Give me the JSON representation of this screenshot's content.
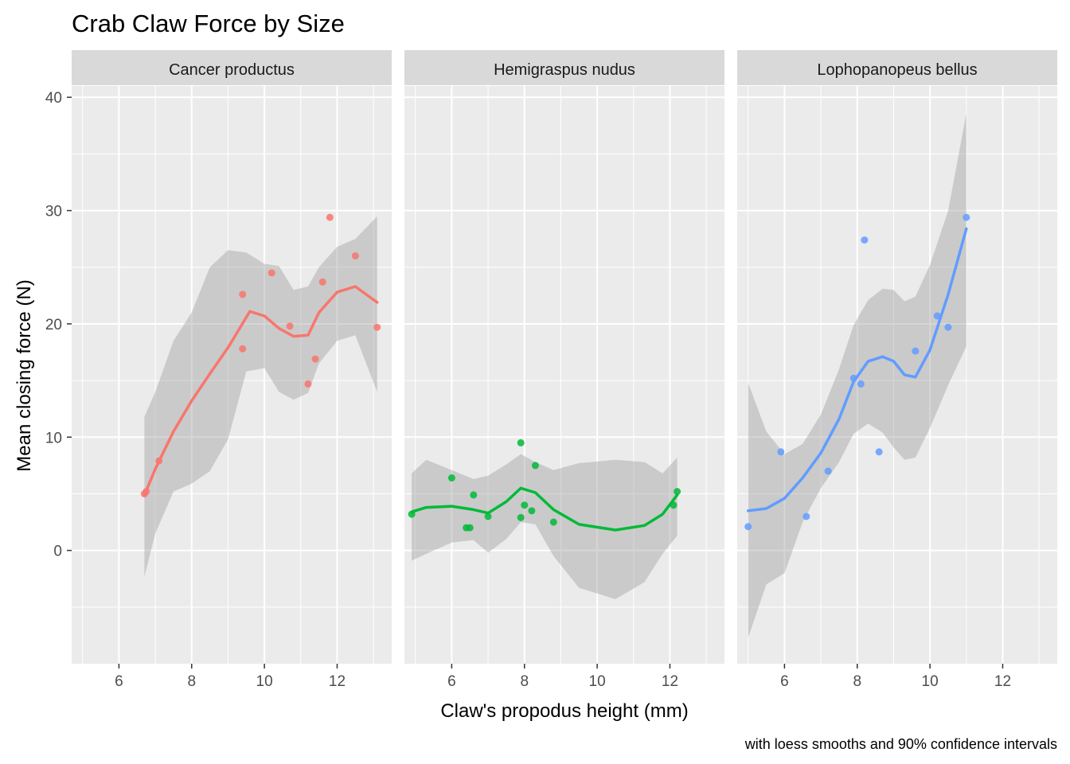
{
  "chart_data": {
    "type": "scatter",
    "title": "Crab Claw Force by Size",
    "xlabel": "Claw's propodus height (mm)",
    "ylabel": "Mean closing force (N)",
    "caption": "with loess smooths and 90% confidence intervals",
    "xlim": [
      4.7,
      13.5
    ],
    "ylim": [
      -10,
      41
    ],
    "x_ticks": [
      6,
      8,
      10,
      12
    ],
    "y_ticks": [
      0,
      10,
      20,
      30,
      40
    ],
    "grid": true,
    "legend": "none",
    "facets": [
      {
        "name": "Cancer productus",
        "color": "#F8766D",
        "points": [
          [
            6.7,
            5.0
          ],
          [
            6.75,
            5.2
          ],
          [
            7.1,
            7.9
          ],
          [
            9.4,
            22.6
          ],
          [
            9.4,
            17.8
          ],
          [
            10.2,
            24.5
          ],
          [
            10.7,
            19.8
          ],
          [
            11.2,
            14.7
          ],
          [
            11.4,
            16.9
          ],
          [
            11.6,
            23.7
          ],
          [
            11.8,
            29.4
          ],
          [
            12.5,
            26.0
          ],
          [
            13.1,
            19.7
          ]
        ],
        "smooth": [
          [
            6.7,
            4.9
          ],
          [
            7.0,
            7.2
          ],
          [
            7.5,
            10.5
          ],
          [
            8.0,
            13.2
          ],
          [
            8.5,
            15.6
          ],
          [
            9.0,
            17.9
          ],
          [
            9.3,
            19.5
          ],
          [
            9.6,
            21.1
          ],
          [
            10.0,
            20.7
          ],
          [
            10.4,
            19.6
          ],
          [
            10.8,
            18.9
          ],
          [
            11.2,
            19.0
          ],
          [
            11.5,
            21.0
          ],
          [
            12.0,
            22.8
          ],
          [
            12.5,
            23.3
          ],
          [
            13.1,
            21.9
          ]
        ],
        "band_upper": [
          [
            6.7,
            11.8
          ],
          [
            7.0,
            14.0
          ],
          [
            7.5,
            18.5
          ],
          [
            8.0,
            21.0
          ],
          [
            8.5,
            25.0
          ],
          [
            9.0,
            26.5
          ],
          [
            9.5,
            26.3
          ],
          [
            10.0,
            25.3
          ],
          [
            10.4,
            25.1
          ],
          [
            10.8,
            23.0
          ],
          [
            11.2,
            23.3
          ],
          [
            11.5,
            25.0
          ],
          [
            12.0,
            26.8
          ],
          [
            12.5,
            27.5
          ],
          [
            13.1,
            29.5
          ]
        ],
        "band_lower": [
          [
            6.7,
            -2.3
          ],
          [
            7.0,
            1.5
          ],
          [
            7.5,
            5.2
          ],
          [
            8.0,
            5.9
          ],
          [
            8.5,
            7.0
          ],
          [
            9.0,
            9.8
          ],
          [
            9.5,
            15.8
          ],
          [
            10.0,
            16.1
          ],
          [
            10.4,
            14.0
          ],
          [
            10.8,
            13.3
          ],
          [
            11.2,
            13.9
          ],
          [
            11.5,
            16.5
          ],
          [
            12.0,
            18.5
          ],
          [
            12.5,
            19.0
          ],
          [
            13.1,
            14.0
          ]
        ]
      },
      {
        "name": "Hemigraspus nudus",
        "color": "#00BA38",
        "points": [
          [
            4.9,
            3.2
          ],
          [
            6.0,
            6.4
          ],
          [
            6.4,
            2.0
          ],
          [
            6.5,
            2.0
          ],
          [
            6.6,
            4.9
          ],
          [
            7.0,
            3.0
          ],
          [
            7.9,
            9.5
          ],
          [
            7.9,
            2.9
          ],
          [
            8.0,
            4.0
          ],
          [
            8.2,
            3.5
          ],
          [
            8.3,
            7.5
          ],
          [
            8.8,
            2.5
          ],
          [
            12.1,
            4.0
          ],
          [
            12.2,
            5.2
          ]
        ],
        "smooth": [
          [
            4.9,
            3.4
          ],
          [
            5.3,
            3.8
          ],
          [
            6.0,
            3.9
          ],
          [
            6.6,
            3.6
          ],
          [
            7.0,
            3.3
          ],
          [
            7.5,
            4.3
          ],
          [
            7.9,
            5.5
          ],
          [
            8.3,
            5.1
          ],
          [
            8.8,
            3.6
          ],
          [
            9.5,
            2.3
          ],
          [
            10.5,
            1.8
          ],
          [
            11.3,
            2.2
          ],
          [
            11.8,
            3.2
          ],
          [
            12.2,
            4.9
          ]
        ],
        "band_upper": [
          [
            4.9,
            6.8
          ],
          [
            5.3,
            8.0
          ],
          [
            6.0,
            7.1
          ],
          [
            6.6,
            6.3
          ],
          [
            7.0,
            6.6
          ],
          [
            7.5,
            7.6
          ],
          [
            7.9,
            8.5
          ],
          [
            8.3,
            7.8
          ],
          [
            8.8,
            7.1
          ],
          [
            9.5,
            7.7
          ],
          [
            10.5,
            8.0
          ],
          [
            11.3,
            7.8
          ],
          [
            11.8,
            6.8
          ],
          [
            12.2,
            8.2
          ]
        ],
        "band_lower": [
          [
            4.9,
            -0.9
          ],
          [
            5.3,
            -0.3
          ],
          [
            6.0,
            0.7
          ],
          [
            6.6,
            0.9
          ],
          [
            7.0,
            -0.2
          ],
          [
            7.5,
            1.0
          ],
          [
            7.9,
            2.5
          ],
          [
            8.3,
            2.3
          ],
          [
            8.8,
            -0.5
          ],
          [
            9.5,
            -3.3
          ],
          [
            10.5,
            -4.3
          ],
          [
            11.3,
            -2.8
          ],
          [
            11.8,
            -0.3
          ],
          [
            12.2,
            1.3
          ]
        ]
      },
      {
        "name": "Lophopanopeus bellus",
        "color": "#619CFF",
        "points": [
          [
            5.0,
            2.1
          ],
          [
            5.9,
            8.7
          ],
          [
            6.6,
            3.0
          ],
          [
            7.2,
            7.0
          ],
          [
            7.9,
            15.2
          ],
          [
            8.1,
            14.7
          ],
          [
            8.2,
            27.4
          ],
          [
            8.6,
            8.7
          ],
          [
            9.6,
            17.6
          ],
          [
            10.2,
            20.7
          ],
          [
            10.5,
            19.7
          ],
          [
            11.0,
            29.4
          ]
        ],
        "smooth": [
          [
            5.0,
            3.5
          ],
          [
            5.5,
            3.7
          ],
          [
            6.0,
            4.6
          ],
          [
            6.5,
            6.4
          ],
          [
            7.0,
            8.6
          ],
          [
            7.5,
            11.6
          ],
          [
            7.9,
            14.9
          ],
          [
            8.3,
            16.7
          ],
          [
            8.7,
            17.1
          ],
          [
            9.0,
            16.7
          ],
          [
            9.3,
            15.5
          ],
          [
            9.6,
            15.3
          ],
          [
            10.0,
            17.7
          ],
          [
            10.5,
            22.6
          ],
          [
            11.0,
            28.4
          ]
        ],
        "band_upper": [
          [
            5.0,
            14.8
          ],
          [
            5.5,
            10.5
          ],
          [
            6.0,
            8.5
          ],
          [
            6.5,
            9.4
          ],
          [
            7.0,
            12.0
          ],
          [
            7.5,
            16.0
          ],
          [
            7.9,
            19.9
          ],
          [
            8.3,
            22.1
          ],
          [
            8.7,
            23.1
          ],
          [
            9.0,
            23.0
          ],
          [
            9.3,
            22.0
          ],
          [
            9.6,
            22.4
          ],
          [
            10.0,
            25.2
          ],
          [
            10.5,
            30.0
          ],
          [
            11.0,
            38.6
          ]
        ],
        "band_lower": [
          [
            5.0,
            -7.7
          ],
          [
            5.5,
            -3.0
          ],
          [
            6.0,
            -2.0
          ],
          [
            6.5,
            2.5
          ],
          [
            7.0,
            5.5
          ],
          [
            7.5,
            7.8
          ],
          [
            7.9,
            10.3
          ],
          [
            8.3,
            11.2
          ],
          [
            8.7,
            10.4
          ],
          [
            9.0,
            9.1
          ],
          [
            9.3,
            8.0
          ],
          [
            9.6,
            8.2
          ],
          [
            10.0,
            10.8
          ],
          [
            10.5,
            14.6
          ],
          [
            11.0,
            18.0
          ]
        ]
      }
    ]
  }
}
